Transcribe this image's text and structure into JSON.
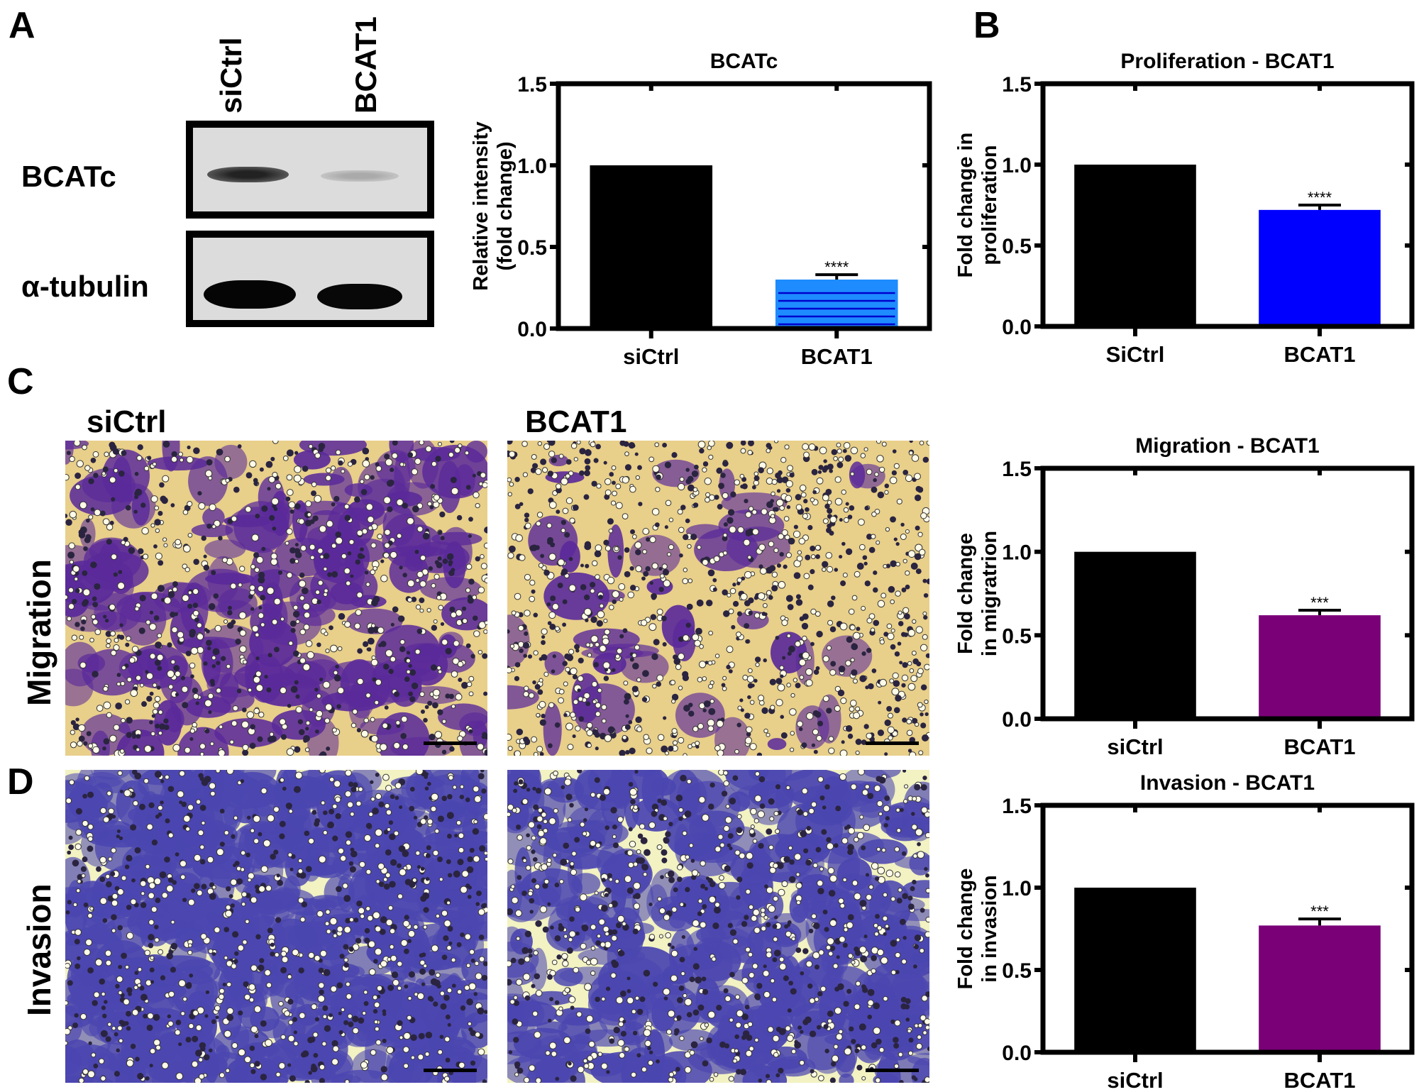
{
  "panel_letters": {
    "a": "A",
    "b": "B",
    "c": "C",
    "d": "D"
  },
  "western_blot": {
    "lanes": [
      "siCtrl",
      "BCAT1"
    ],
    "rows": [
      {
        "label": "BCATc"
      },
      {
        "label": "α-tubulin"
      }
    ]
  },
  "micrographs": {
    "column_labels": [
      "siCtrl",
      "BCAT1"
    ],
    "row_labels": [
      "Migration",
      "Invasion"
    ],
    "colors": {
      "migration_bg": "#e8cf8a",
      "migration_stain": "#5b2a9a",
      "invasion_bg": "#f2f2c2",
      "invasion_stain": "#4b46b0"
    }
  },
  "chart_data": [
    {
      "type": "bar",
      "title": "BCATc",
      "categories": [
        "siCtrl",
        "BCAT1"
      ],
      "values": [
        1.0,
        0.3
      ],
      "error_upper": [
        null,
        0.33
      ],
      "significance": [
        "",
        "****"
      ],
      "colors": [
        "#000000",
        "#1e8cff"
      ],
      "bar_pattern": [
        null,
        "horizontal-stripes"
      ],
      "xlabel": "",
      "ylabel": "Relative intensity (fold change)",
      "ylabel_lines": [
        "Relative intensity",
        "(fold change)"
      ],
      "ylim": [
        0,
        1.5
      ],
      "yticks": [
        "0.0",
        "0.5",
        "1.0",
        "1.5"
      ],
      "grid": false
    },
    {
      "type": "bar",
      "title": "Proliferation - BCAT1",
      "categories": [
        "SiCtrl",
        "BCAT1"
      ],
      "values": [
        1.0,
        0.72
      ],
      "error_upper": [
        null,
        0.75
      ],
      "significance": [
        "",
        "****"
      ],
      "colors": [
        "#000000",
        "#0000ff"
      ],
      "xlabel": "",
      "ylabel": "Fold change in proliferation",
      "ylabel_lines": [
        "Fold change in",
        "proliferation"
      ],
      "ylim": [
        0,
        1.5
      ],
      "yticks": [
        "0.0",
        "0.5",
        "1.0",
        "1.5"
      ],
      "grid": false
    },
    {
      "type": "bar",
      "title": "Migration - BCAT1",
      "categories": [
        "siCtrl",
        "BCAT1"
      ],
      "values": [
        1.0,
        0.62
      ],
      "error_upper": [
        null,
        0.65
      ],
      "significance": [
        "",
        "***"
      ],
      "colors": [
        "#000000",
        "#7a0077"
      ],
      "xlabel": "",
      "ylabel": "Fold change in migratrion",
      "ylabel_lines": [
        "Fold change",
        "in migratrion"
      ],
      "ylim": [
        0,
        1.5
      ],
      "yticks": [
        "0.0",
        "0.5",
        "1.0",
        "1.5"
      ],
      "grid": false
    },
    {
      "type": "bar",
      "title": "Invasion - BCAT1",
      "categories": [
        "siCtrl",
        "BCAT1"
      ],
      "values": [
        1.0,
        0.77
      ],
      "error_upper": [
        null,
        0.81
      ],
      "significance": [
        "",
        "***"
      ],
      "colors": [
        "#000000",
        "#7a0077"
      ],
      "xlabel": "",
      "ylabel": "Fold change in invasion",
      "ylabel_lines": [
        "Fold change",
        "in invasion"
      ],
      "ylim": [
        0,
        1.5
      ],
      "yticks": [
        "0.0",
        "0.5",
        "1.0",
        "1.5"
      ],
      "grid": false
    }
  ]
}
